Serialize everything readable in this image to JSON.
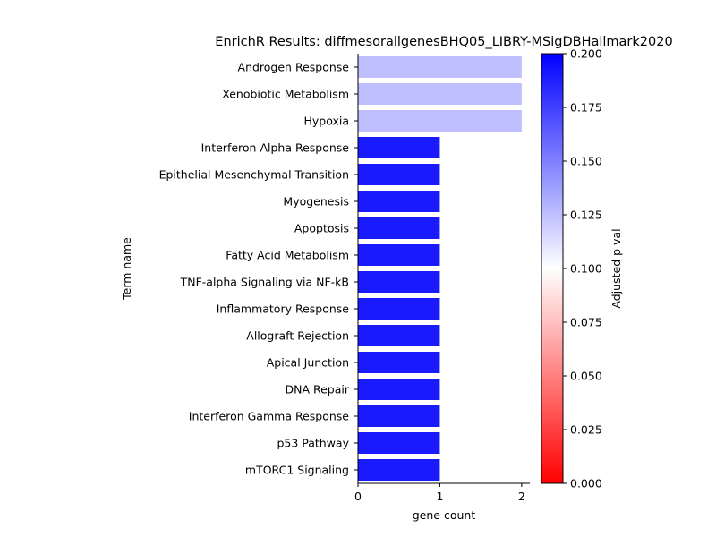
{
  "chart_data": {
    "type": "bar",
    "orientation": "horizontal",
    "title": "EnrichR Results: diffmesorallgenesBHQ05_LIBRY-MSigDBHallmark2020",
    "xlabel": "gene count",
    "ylabel": "Term name",
    "xlim": [
      0,
      2.1
    ],
    "xticks": [
      "0",
      "1",
      "2"
    ],
    "grid": false,
    "categories": [
      "Androgen Response",
      "Xenobiotic Metabolism",
      "Hypoxia",
      "Interferon Alpha Response",
      "Epithelial Mesenchymal Transition",
      "Myogenesis",
      "Apoptosis",
      "Fatty Acid Metabolism",
      "TNF-alpha Signaling via NF-kB",
      "Inflammatory Response",
      "Allograft Rejection",
      "Apical Junction",
      "DNA Repair",
      "Interferon Gamma Response",
      "p53 Pathway",
      "mTORC1 Signaling"
    ],
    "values": [
      2,
      2,
      2,
      1,
      1,
      1,
      1,
      1,
      1,
      1,
      1,
      1,
      1,
      1,
      1,
      1
    ],
    "adjusted_p_val": [
      0.125,
      0.125,
      0.125,
      0.19,
      0.19,
      0.19,
      0.19,
      0.19,
      0.19,
      0.19,
      0.19,
      0.19,
      0.19,
      0.19,
      0.19,
      0.19
    ],
    "colorbar": {
      "label": "Adjusted p val",
      "range": [
        0,
        0.2
      ],
      "ticks": [
        "0.000",
        "0.025",
        "0.050",
        "0.075",
        "0.100",
        "0.125",
        "0.150",
        "0.175",
        "0.200"
      ],
      "colormap": "bwr_r",
      "colors": {
        "low": "#ff0000",
        "mid": "#ffffff",
        "high": "#0000ff"
      }
    }
  }
}
